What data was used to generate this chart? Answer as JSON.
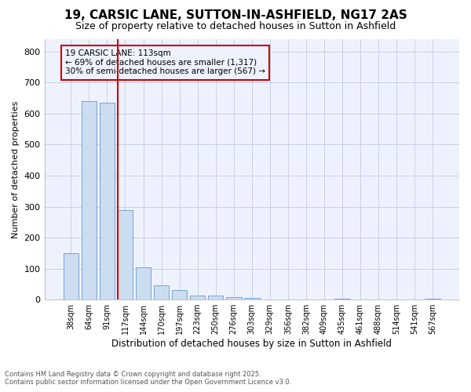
{
  "title_line1": "19, CARSIC LANE, SUTTON-IN-ASHFIELD, NG17 2AS",
  "title_line2": "Size of property relative to detached houses in Sutton in Ashfield",
  "xlabel": "Distribution of detached houses by size in Sutton in Ashfield",
  "ylabel": "Number of detached properties",
  "annotation_title": "19 CARSIC LANE: 113sqm",
  "annotation_line2": "← 69% of detached houses are smaller (1,317)",
  "annotation_line3": "30% of semi-detached houses are larger (567) →",
  "footer_line1": "Contains HM Land Registry data © Crown copyright and database right 2025.",
  "footer_line2": "Contains public sector information licensed under the Open Government Licence v3.0.",
  "bar_color": "#ccddf0",
  "bar_edge_color": "#6699cc",
  "vline_color": "#cc0000",
  "annotation_box_edge_color": "#cc0000",
  "background_color": "#ffffff",
  "plot_bg_color": "#eef2ff",
  "categories": [
    "38sqm",
    "64sqm",
    "91sqm",
    "117sqm",
    "144sqm",
    "170sqm",
    "197sqm",
    "223sqm",
    "250sqm",
    "276sqm",
    "303sqm",
    "329sqm",
    "356sqm",
    "382sqm",
    "409sqm",
    "435sqm",
    "461sqm",
    "488sqm",
    "514sqm",
    "541sqm",
    "567sqm"
  ],
  "values": [
    150,
    640,
    635,
    290,
    103,
    45,
    32,
    12,
    12,
    8,
    5,
    0,
    0,
    0,
    0,
    3,
    0,
    0,
    0,
    0,
    4
  ],
  "ylim": [
    0,
    840
  ],
  "yticks": [
    0,
    100,
    200,
    300,
    400,
    500,
    600,
    700,
    800
  ],
  "vline_x_index": 3,
  "grid_color": "#c8d0e0"
}
